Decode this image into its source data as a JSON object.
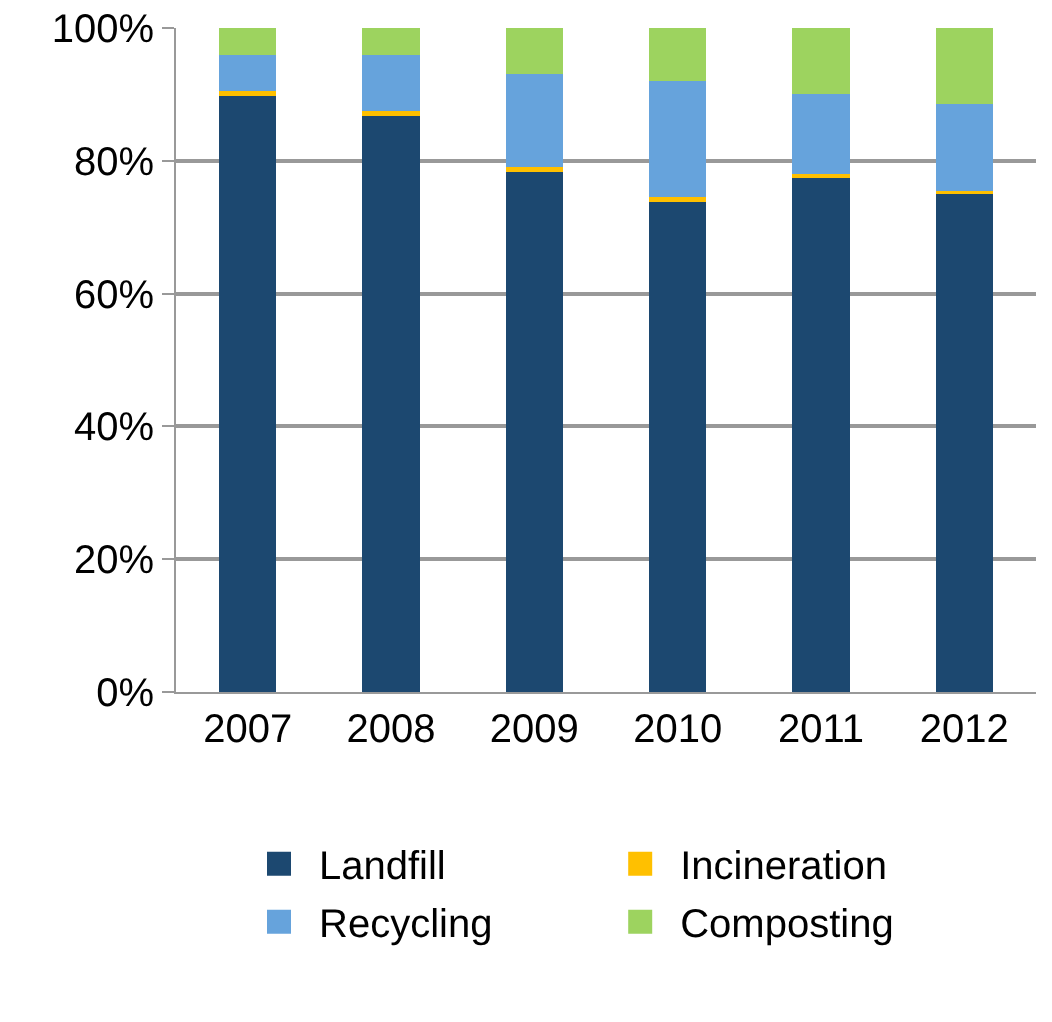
{
  "chart_data": {
    "type": "bar",
    "stacked": true,
    "categories": [
      "2007",
      "2008",
      "2009",
      "2010",
      "2011",
      "2012"
    ],
    "series": [
      {
        "name": "Landfill",
        "color": "#1c4870",
        "values": [
          90,
          87,
          78.5,
          74,
          77.5,
          75
        ]
      },
      {
        "name": "Incineration",
        "color": "#ffc000",
        "values": [
          0.5,
          0.5,
          0.5,
          0.5,
          0.5,
          0.5
        ]
      },
      {
        "name": "Recycling",
        "color": "#66a3dc",
        "values": [
          5.5,
          8.5,
          14,
          17.5,
          12,
          13
        ]
      },
      {
        "name": "Composting",
        "color": "#9dd35f",
        "values": [
          4,
          4,
          7,
          8,
          10,
          11.5
        ]
      }
    ],
    "ylim": [
      0,
      100
    ],
    "yticks": [
      {
        "value": 0,
        "label": "0%"
      },
      {
        "value": 20,
        "label": "20%"
      },
      {
        "value": 40,
        "label": "40%"
      },
      {
        "value": 60,
        "label": "60%"
      },
      {
        "value": 80,
        "label": "80%"
      },
      {
        "value": 100,
        "label": "100%"
      }
    ],
    "grid": "y",
    "legend": "bottom"
  }
}
